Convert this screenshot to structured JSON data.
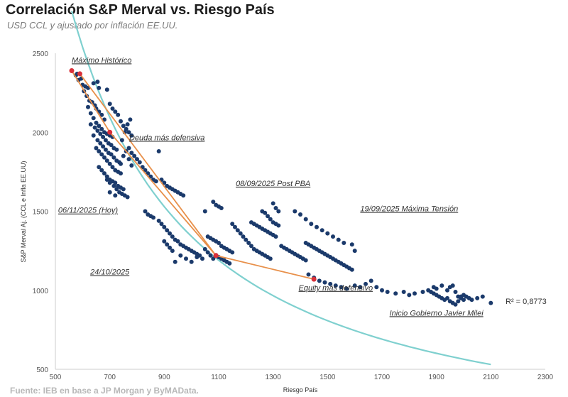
{
  "header": {
    "title": "Correlación S&P Merval vs. Riesgo País",
    "subtitle": "USD CCL y ajustado por inflación EE.UU.",
    "source": "Fuente: IEB en base a JP Morgan y ByMAData."
  },
  "chart_data": {
    "type": "scatter",
    "xlabel": "Riesgo País",
    "ylabel": "S&P Merval Aj. (CCL e Infla EE.UU)",
    "xlim": [
      500,
      2300
    ],
    "ylim": [
      500,
      2500
    ],
    "xticks": [
      500,
      700,
      900,
      1100,
      1300,
      1500,
      1700,
      1900,
      2100,
      2300
    ],
    "yticks": [
      500,
      1000,
      1500,
      2000,
      2500
    ],
    "grid": false,
    "r2_label": "R² = 0,8773",
    "colors": {
      "points": "#1b3a6b",
      "trend": "#7fd0cf",
      "path": "#e8904a",
      "highlight": "#d9303a"
    },
    "trendline": {
      "type": "power",
      "a": 7540000,
      "b": -1.25
    },
    "highlight_path": [
      {
        "x": 560,
        "y": 2390
      },
      {
        "x": 700,
        "y": 2000
      },
      {
        "x": 1090,
        "y": 1220
      },
      {
        "x": 1450,
        "y": 1070
      }
    ],
    "highlight_path2": [
      {
        "x": 590,
        "y": 2370
      },
      {
        "x": 1090,
        "y": 1220
      }
    ],
    "annotations": [
      {
        "text": "Máximo Histórico",
        "x": 670,
        "y": 2440
      },
      {
        "text": "Deuda más defensiva",
        "x": 910,
        "y": 1950
      },
      {
        "text": "08/09/2025 Post PBA",
        "x": 1300,
        "y": 1660
      },
      {
        "text": "19/09/2025 Máxima Tensión",
        "x": 1800,
        "y": 1500
      },
      {
        "text": "06/11/2025 (Hoy)",
        "x": 620,
        "y": 1490
      },
      {
        "text": "24/10/2025",
        "x": 700,
        "y": 1100
      },
      {
        "text": "Equity más defensivo",
        "x": 1530,
        "y": 1000
      },
      {
        "text": "Inicio Gobierno Javier Milei",
        "x": 1900,
        "y": 840
      }
    ],
    "series": [
      {
        "points": [
          [
            560,
            2390
          ],
          [
            575,
            2360
          ],
          [
            585,
            2330
          ],
          [
            600,
            2300
          ],
          [
            610,
            2290
          ],
          [
            620,
            2280
          ],
          [
            640,
            2310
          ],
          [
            655,
            2320
          ],
          [
            660,
            2280
          ],
          [
            580,
            2370
          ],
          [
            595,
            2340
          ],
          [
            605,
            2260
          ],
          [
            615,
            2230
          ],
          [
            625,
            2200
          ],
          [
            635,
            2190
          ],
          [
            645,
            2170
          ],
          [
            650,
            2150
          ],
          [
            660,
            2130
          ],
          [
            670,
            2110
          ],
          [
            680,
            2080
          ],
          [
            620,
            2160
          ],
          [
            630,
            2120
          ],
          [
            640,
            2090
          ],
          [
            650,
            2060
          ],
          [
            660,
            2040
          ],
          [
            670,
            2020
          ],
          [
            680,
            2000
          ],
          [
            690,
            1990
          ],
          [
            700,
            1980
          ],
          [
            710,
            1970
          ],
          [
            630,
            2050
          ],
          [
            645,
            2030
          ],
          [
            655,
            2010
          ],
          [
            665,
            1990
          ],
          [
            675,
            1970
          ],
          [
            685,
            1950
          ],
          [
            695,
            1930
          ],
          [
            705,
            1920
          ],
          [
            715,
            1900
          ],
          [
            725,
            1890
          ],
          [
            650,
            1900
          ],
          [
            660,
            1880
          ],
          [
            670,
            1860
          ],
          [
            680,
            1840
          ],
          [
            690,
            1820
          ],
          [
            700,
            1800
          ],
          [
            710,
            1780
          ],
          [
            720,
            1760
          ],
          [
            730,
            1750
          ],
          [
            740,
            1740
          ],
          [
            660,
            1780
          ],
          [
            670,
            1760
          ],
          [
            680,
            1740
          ],
          [
            690,
            1720
          ],
          [
            700,
            1700
          ],
          [
            710,
            1690
          ],
          [
            720,
            1680
          ],
          [
            730,
            1660
          ],
          [
            740,
            1650
          ],
          [
            750,
            1640
          ],
          [
            690,
            1700
          ],
          [
            700,
            1680
          ],
          [
            715,
            1660
          ],
          [
            725,
            1640
          ],
          [
            735,
            1620
          ],
          [
            745,
            1610
          ],
          [
            755,
            1600
          ],
          [
            765,
            1590
          ],
          [
            700,
            1620
          ],
          [
            720,
            1600
          ],
          [
            740,
            1800
          ],
          [
            750,
            1850
          ],
          [
            760,
            1880
          ],
          [
            770,
            1900
          ],
          [
            745,
            1950
          ],
          [
            755,
            2000
          ],
          [
            765,
            2050
          ],
          [
            775,
            2080
          ],
          [
            770,
            1830
          ],
          [
            780,
            1790
          ],
          [
            690,
            2270
          ],
          [
            700,
            2180
          ],
          [
            710,
            2150
          ],
          [
            720,
            2130
          ],
          [
            730,
            2110
          ],
          [
            740,
            2070
          ],
          [
            750,
            2040
          ],
          [
            760,
            2020
          ],
          [
            770,
            2000
          ],
          [
            780,
            1980
          ],
          [
            640,
            1980
          ],
          [
            655,
            1950
          ],
          [
            665,
            1930
          ],
          [
            675,
            1910
          ],
          [
            685,
            1890
          ],
          [
            695,
            1870
          ],
          [
            705,
            1860
          ],
          [
            715,
            1840
          ],
          [
            725,
            1820
          ],
          [
            735,
            1810
          ],
          [
            780,
            1870
          ],
          [
            790,
            1850
          ],
          [
            800,
            1830
          ],
          [
            810,
            1810
          ],
          [
            820,
            1780
          ],
          [
            830,
            1760
          ],
          [
            840,
            1740
          ],
          [
            850,
            1720
          ],
          [
            860,
            1700
          ],
          [
            870,
            1690
          ],
          [
            880,
            1880
          ],
          [
            890,
            1700
          ],
          [
            900,
            1680
          ],
          [
            910,
            1660
          ],
          [
            920,
            1650
          ],
          [
            930,
            1640
          ],
          [
            940,
            1630
          ],
          [
            950,
            1620
          ],
          [
            960,
            1610
          ],
          [
            970,
            1600
          ],
          [
            830,
            1500
          ],
          [
            840,
            1480
          ],
          [
            850,
            1470
          ],
          [
            860,
            1460
          ],
          [
            880,
            1440
          ],
          [
            890,
            1420
          ],
          [
            900,
            1400
          ],
          [
            910,
            1380
          ],
          [
            920,
            1360
          ],
          [
            930,
            1340
          ],
          [
            940,
            1320
          ],
          [
            950,
            1310
          ],
          [
            960,
            1290
          ],
          [
            970,
            1280
          ],
          [
            980,
            1270
          ],
          [
            990,
            1260
          ],
          [
            1000,
            1250
          ],
          [
            1010,
            1240
          ],
          [
            1020,
            1230
          ],
          [
            1030,
            1220
          ],
          [
            900,
            1310
          ],
          [
            910,
            1290
          ],
          [
            920,
            1270
          ],
          [
            930,
            1250
          ],
          [
            940,
            1180
          ],
          [
            960,
            1220
          ],
          [
            980,
            1200
          ],
          [
            1000,
            1180
          ],
          [
            1020,
            1210
          ],
          [
            1040,
            1200
          ],
          [
            1050,
            1260
          ],
          [
            1060,
            1240
          ],
          [
            1070,
            1220
          ],
          [
            1080,
            1200
          ],
          [
            1090,
            1220
          ],
          [
            1100,
            1210
          ],
          [
            1110,
            1200
          ],
          [
            1120,
            1190
          ],
          [
            1130,
            1180
          ],
          [
            1140,
            1170
          ],
          [
            1060,
            1340
          ],
          [
            1070,
            1330
          ],
          [
            1080,
            1320
          ],
          [
            1090,
            1310
          ],
          [
            1100,
            1300
          ],
          [
            1110,
            1280
          ],
          [
            1120,
            1270
          ],
          [
            1130,
            1260
          ],
          [
            1140,
            1250
          ],
          [
            1150,
            1240
          ],
          [
            1080,
            1560
          ],
          [
            1090,
            1540
          ],
          [
            1100,
            1530
          ],
          [
            1110,
            1520
          ],
          [
            1050,
            1500
          ],
          [
            1150,
            1420
          ],
          [
            1160,
            1400
          ],
          [
            1170,
            1380
          ],
          [
            1180,
            1360
          ],
          [
            1190,
            1340
          ],
          [
            1200,
            1320
          ],
          [
            1210,
            1300
          ],
          [
            1220,
            1280
          ],
          [
            1230,
            1260
          ],
          [
            1240,
            1250
          ],
          [
            1250,
            1240
          ],
          [
            1260,
            1230
          ],
          [
            1270,
            1220
          ],
          [
            1280,
            1210
          ],
          [
            1290,
            1200
          ],
          [
            1220,
            1430
          ],
          [
            1230,
            1420
          ],
          [
            1240,
            1410
          ],
          [
            1250,
            1400
          ],
          [
            1260,
            1390
          ],
          [
            1270,
            1380
          ],
          [
            1280,
            1370
          ],
          [
            1290,
            1360
          ],
          [
            1300,
            1350
          ],
          [
            1310,
            1340
          ],
          [
            1260,
            1500
          ],
          [
            1270,
            1490
          ],
          [
            1280,
            1470
          ],
          [
            1290,
            1450
          ],
          [
            1300,
            1430
          ],
          [
            1310,
            1420
          ],
          [
            1320,
            1410
          ],
          [
            1300,
            1550
          ],
          [
            1310,
            1520
          ],
          [
            1320,
            1500
          ],
          [
            1330,
            1280
          ],
          [
            1340,
            1270
          ],
          [
            1350,
            1260
          ],
          [
            1360,
            1250
          ],
          [
            1370,
            1240
          ],
          [
            1380,
            1230
          ],
          [
            1390,
            1220
          ],
          [
            1400,
            1210
          ],
          [
            1410,
            1200
          ],
          [
            1420,
            1190
          ],
          [
            1380,
            1500
          ],
          [
            1400,
            1480
          ],
          [
            1420,
            1450
          ],
          [
            1440,
            1420
          ],
          [
            1460,
            1400
          ],
          [
            1480,
            1380
          ],
          [
            1500,
            1360
          ],
          [
            1520,
            1340
          ],
          [
            1540,
            1320
          ],
          [
            1560,
            1300
          ],
          [
            1420,
            1300
          ],
          [
            1430,
            1290
          ],
          [
            1440,
            1280
          ],
          [
            1450,
            1270
          ],
          [
            1460,
            1260
          ],
          [
            1470,
            1250
          ],
          [
            1480,
            1240
          ],
          [
            1490,
            1230
          ],
          [
            1500,
            1220
          ],
          [
            1510,
            1210
          ],
          [
            1520,
            1200
          ],
          [
            1530,
            1190
          ],
          [
            1540,
            1180
          ],
          [
            1550,
            1170
          ],
          [
            1560,
            1160
          ],
          [
            1570,
            1150
          ],
          [
            1580,
            1140
          ],
          [
            1590,
            1130
          ],
          [
            1600,
            1250
          ],
          [
            1590,
            1290
          ],
          [
            1430,
            1100
          ],
          [
            1450,
            1080
          ],
          [
            1470,
            1060
          ],
          [
            1490,
            1050
          ],
          [
            1510,
            1040
          ],
          [
            1530,
            1030
          ],
          [
            1550,
            1020
          ],
          [
            1570,
            1010
          ],
          [
            1600,
            1030
          ],
          [
            1620,
            1020
          ],
          [
            1640,
            1040
          ],
          [
            1660,
            1060
          ],
          [
            1680,
            1020
          ],
          [
            1700,
            1000
          ],
          [
            1720,
            990
          ],
          [
            1750,
            980
          ],
          [
            1780,
            990
          ],
          [
            1800,
            970
          ],
          [
            1820,
            980
          ],
          [
            1850,
            990
          ],
          [
            1870,
            1000
          ],
          [
            1880,
            990
          ],
          [
            1890,
            980
          ],
          [
            1900,
            970
          ],
          [
            1910,
            960
          ],
          [
            1920,
            950
          ],
          [
            1930,
            940
          ],
          [
            1940,
            1000
          ],
          [
            1950,
            1020
          ],
          [
            1960,
            1030
          ],
          [
            1970,
            990
          ],
          [
            1980,
            960
          ],
          [
            1990,
            950
          ],
          [
            2000,
            940
          ],
          [
            2010,
            960
          ],
          [
            2020,
            950
          ],
          [
            2030,
            940
          ],
          [
            2050,
            950
          ],
          [
            2070,
            960
          ],
          [
            2100,
            920
          ],
          [
            1890,
            1020
          ],
          [
            1900,
            1010
          ],
          [
            1920,
            1030
          ],
          [
            1940,
            950
          ],
          [
            1950,
            930
          ],
          [
            1960,
            920
          ],
          [
            1970,
            910
          ],
          [
            1980,
            930
          ],
          [
            1990,
            960
          ],
          [
            2000,
            970
          ]
        ]
      }
    ]
  }
}
